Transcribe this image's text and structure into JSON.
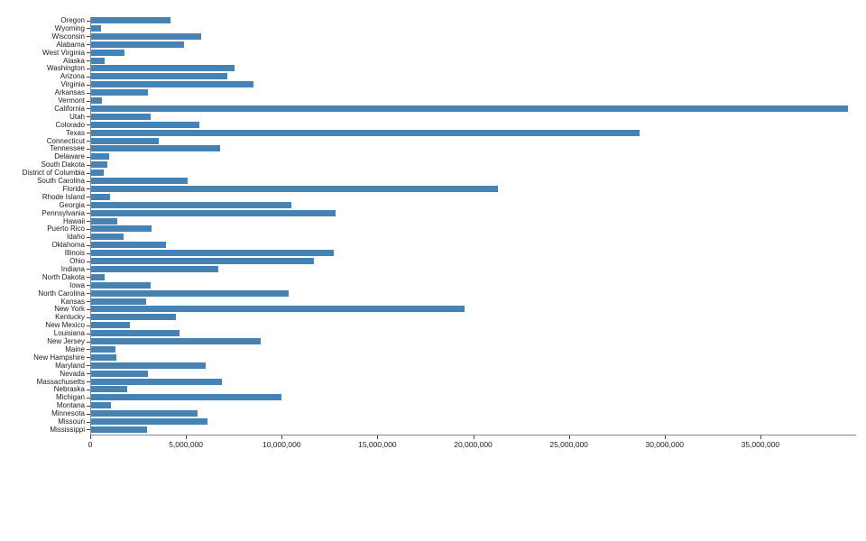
{
  "chart_data": {
    "type": "bar",
    "orientation": "horizontal",
    "categories": [
      "Oregon",
      "Wyoming",
      "Wisconsin",
      "Alabama",
      "West Virginia",
      "Alaska",
      "Washington",
      "Arizona",
      "Virginia",
      "Arkansas",
      "Vermont",
      "California",
      "Utah",
      "Colorado",
      "Texas",
      "Connecticut",
      "Tennessee",
      "Delaware",
      "South Dakota",
      "District of Columbia",
      "South Carolina",
      "Florida",
      "Rhode Island",
      "Georgia",
      "Pennsylvania",
      "Hawaii",
      "Puerto Rico",
      "Idaho",
      "Oklahoma",
      "Illinois",
      "Ohio",
      "Indiana",
      "North Dakota",
      "Iowa",
      "North Carolina",
      "Kansas",
      "New York",
      "Kentucky",
      "New Mexico",
      "Louisiana",
      "New Jersey",
      "Maine",
      "New Hampshire",
      "Maryland",
      "Nevada",
      "Massachusetts",
      "Nebraska",
      "Michigan",
      "Montana",
      "Minnesota",
      "Missouri",
      "Mississippi"
    ],
    "values": [
      4190713,
      577737,
      5813568,
      4887871,
      1805832,
      737438,
      7535591,
      7171646,
      8517685,
      3013825,
      626299,
      39557045,
      3161105,
      5695564,
      28701845,
      3572665,
      6770010,
      967171,
      882235,
      702455,
      5084127,
      21299325,
      1057315,
      10519475,
      12807060,
      1420491,
      3195153,
      1754208,
      3943079,
      12741080,
      11689442,
      6691878,
      760077,
      3156145,
      10383620,
      2911505,
      19542209,
      4468402,
      2095428,
      4659978,
      8908520,
      1338404,
      1356458,
      6042718,
      3034392,
      6902149,
      1929268,
      9995915,
      1062305,
      5611179,
      6126452,
      2986530
    ],
    "xlabel": "",
    "ylabel": "",
    "xlim": [
      0,
      40000000
    ],
    "xticks": [
      {
        "value": 0,
        "label": "0"
      },
      {
        "value": 5000000,
        "label": "5,000,000"
      },
      {
        "value": 10000000,
        "label": "10,000,000"
      },
      {
        "value": 15000000,
        "label": "15,000,000"
      },
      {
        "value": 20000000,
        "label": "20,000,000"
      },
      {
        "value": 25000000,
        "label": "25,000,000"
      },
      {
        "value": 30000000,
        "label": "30,000,000"
      },
      {
        "value": 35000000,
        "label": "35,000,000"
      }
    ],
    "grid": false,
    "legend": "none",
    "bar_color": "#4682b4",
    "axis_color": "#888888",
    "tick_color": "#444444",
    "text_color": "#1a1a1a"
  }
}
